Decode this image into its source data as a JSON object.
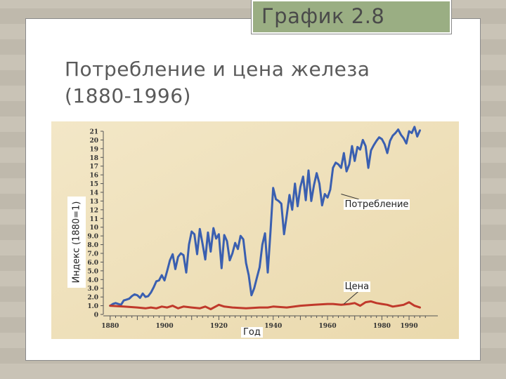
{
  "slide": {
    "tag": "График 2.8",
    "title": "Потребление и цена железа (1880-1996)"
  },
  "chart_data": {
    "type": "line",
    "ylabel": "Индекс (1880=1)",
    "xlabel": "Год",
    "xlim": [
      1878,
      1998
    ],
    "ylim": [
      0,
      21
    ],
    "x_ticks": [
      1880,
      1900,
      1920,
      1940,
      1960,
      1980,
      1990
    ],
    "y_ticks": [
      {
        "v": 0,
        "label": "0"
      },
      {
        "v": 1,
        "label": "1.0"
      },
      {
        "v": 2,
        "label": "2.0"
      },
      {
        "v": 3,
        "label": "3.0"
      },
      {
        "v": 4,
        "label": "4.0"
      },
      {
        "v": 5,
        "label": "5.0"
      },
      {
        "v": 6,
        "label": "6.0"
      },
      {
        "v": 7,
        "label": "7.0"
      },
      {
        "v": 8,
        "label": "8.0"
      },
      {
        "v": 9,
        "label": "9.0"
      },
      {
        "v": 10,
        "label": "10"
      },
      {
        "v": 11,
        "label": "11"
      },
      {
        "v": 12,
        "label": "12"
      },
      {
        "v": 13,
        "label": "13"
      },
      {
        "v": 14,
        "label": "14"
      },
      {
        "v": 15,
        "label": "15"
      },
      {
        "v": 16,
        "label": "16"
      },
      {
        "v": 17,
        "label": "17"
      },
      {
        "v": 18,
        "label": "18"
      },
      {
        "v": 19,
        "label": "19"
      },
      {
        "v": 20,
        "label": "20"
      },
      {
        "v": 21,
        "label": "21"
      }
    ],
    "grid": false,
    "series": [
      {
        "name": "Потребление",
        "color": "#3a5fb0",
        "x": [
          1880,
          1881,
          1882,
          1883,
          1884,
          1885,
          1886,
          1887,
          1888,
          1889,
          1890,
          1891,
          1892,
          1893,
          1894,
          1895,
          1896,
          1897,
          1898,
          1899,
          1900,
          1901,
          1902,
          1903,
          1904,
          1905,
          1906,
          1907,
          1908,
          1909,
          1910,
          1911,
          1912,
          1913,
          1914,
          1915,
          1916,
          1917,
          1918,
          1919,
          1920,
          1921,
          1922,
          1923,
          1924,
          1925,
          1926,
          1927,
          1928,
          1929,
          1930,
          1931,
          1932,
          1933,
          1934,
          1935,
          1936,
          1937,
          1938,
          1939,
          1940,
          1941,
          1942,
          1943,
          1944,
          1945,
          1946,
          1947,
          1948,
          1949,
          1950,
          1951,
          1952,
          1953,
          1954,
          1955,
          1956,
          1957,
          1958,
          1959,
          1960,
          1961,
          1962,
          1963,
          1964,
          1965,
          1966,
          1967,
          1968,
          1969,
          1970,
          1971,
          1972,
          1973,
          1974,
          1975,
          1976,
          1977,
          1978,
          1979,
          1980,
          1981,
          1982,
          1983,
          1984,
          1985,
          1986,
          1987,
          1988,
          1989,
          1990,
          1991,
          1992,
          1993,
          1994
        ],
        "values": [
          1.0,
          1.2,
          1.3,
          1.2,
          1.1,
          1.6,
          1.7,
          1.8,
          2.1,
          2.3,
          2.2,
          1.9,
          2.4,
          2.0,
          2.1,
          2.5,
          3.1,
          3.8,
          3.9,
          4.5,
          3.9,
          5.0,
          6.2,
          6.9,
          5.2,
          6.6,
          7.0,
          6.8,
          4.8,
          8.0,
          9.5,
          9.2,
          6.9,
          9.8,
          8.1,
          6.3,
          9.4,
          7.2,
          9.9,
          8.7,
          9.2,
          5.3,
          9.1,
          8.4,
          6.2,
          7.0,
          8.2,
          7.5,
          9.0,
          8.6,
          5.9,
          4.5,
          2.2,
          3.0,
          4.2,
          5.4,
          8.0,
          9.3,
          4.8,
          9.5,
          14.5,
          13.2,
          13.0,
          12.7,
          9.2,
          11.4,
          13.7,
          12.0,
          15.0,
          12.4,
          14.6,
          15.8,
          13.1,
          16.5,
          13.0,
          14.8,
          16.2,
          15.0,
          12.5,
          13.8,
          13.4,
          14.3,
          16.8,
          17.4,
          17.2,
          16.8,
          18.5,
          16.4,
          17.2,
          19.3,
          17.6,
          19.2,
          18.9,
          20.0,
          19.3,
          16.8,
          18.8,
          19.4,
          19.9,
          20.3,
          20.1,
          19.5,
          18.5,
          19.9,
          20.5,
          20.8,
          21.2,
          20.6,
          20.2,
          19.6,
          21.0,
          20.8,
          21.5,
          20.4,
          21.1
        ],
        "label_x": 1971,
        "label_y": 12.4,
        "arrow_to": [
          1965,
          13.8
        ]
      },
      {
        "name": "Цена",
        "color": "#c0392b",
        "x": [
          1880,
          1885,
          1890,
          1893,
          1895,
          1897,
          1899,
          1901,
          1903,
          1905,
          1907,
          1910,
          1913,
          1915,
          1917,
          1920,
          1922,
          1925,
          1930,
          1935,
          1938,
          1940,
          1945,
          1950,
          1955,
          1960,
          1962,
          1965,
          1968,
          1970,
          1972,
          1974,
          1976,
          1978,
          1980,
          1982,
          1984,
          1986,
          1988,
          1990,
          1992,
          1994
        ],
        "values": [
          1.0,
          0.9,
          0.8,
          0.7,
          0.8,
          0.7,
          0.9,
          0.8,
          1.0,
          0.7,
          0.9,
          0.8,
          0.7,
          0.9,
          0.6,
          1.1,
          0.9,
          0.8,
          0.7,
          0.8,
          0.8,
          0.9,
          0.8,
          1.0,
          1.1,
          1.2,
          1.2,
          1.1,
          1.2,
          1.3,
          1.0,
          1.4,
          1.5,
          1.3,
          1.2,
          1.1,
          0.9,
          1.0,
          1.1,
          1.4,
          1.0,
          0.8
        ],
        "label_x": 1971,
        "label_y": 3.0,
        "arrow_to": [
          1966,
          1.2
        ]
      }
    ]
  }
}
